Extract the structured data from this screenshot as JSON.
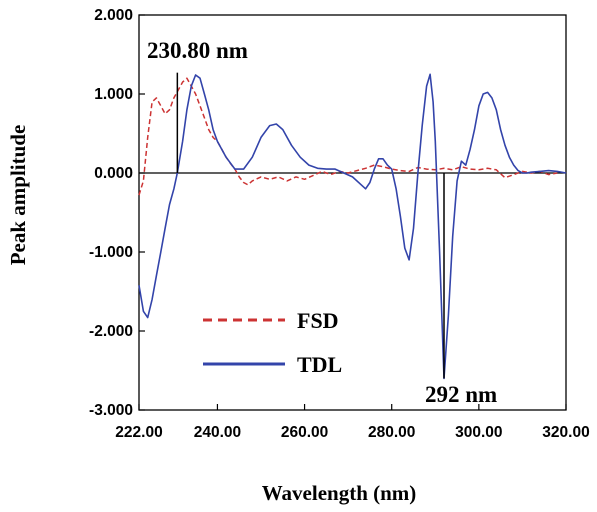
{
  "chart_data": {
    "type": "line",
    "xlabel": "Wavelength (nm)",
    "ylabel": "Peak amplitude",
    "xlim": [
      222,
      320
    ],
    "ylim": [
      -3,
      2
    ],
    "x_ticks": [
      222,
      240,
      260,
      280,
      300,
      320
    ],
    "x_tick_labels": [
      "222.00",
      "240.00",
      "260.00",
      "280.00",
      "300.00",
      "320.00"
    ],
    "y_ticks": [
      2,
      1,
      0,
      -1,
      -2,
      -3
    ],
    "y_tick_labels": [
      "2.000",
      "1.000",
      "0.000",
      "-1.000",
      "-2.000",
      "-3.000"
    ],
    "grid": false,
    "zero_line": true,
    "legend": {
      "placement": "lower-left",
      "entries": [
        "FSD",
        "TDL"
      ]
    },
    "colors": {
      "FSD": "#cc3333",
      "TDL": "#3344aa"
    },
    "annotations": [
      {
        "text": "230.80 nm",
        "x": 230.8,
        "y_from": 0.0,
        "y_to": 1.27
      },
      {
        "text": "292 nm",
        "x": 292,
        "y_from": 0.0,
        "y_to": -2.6
      }
    ],
    "series": [
      {
        "name": "FSD",
        "style": "dashed",
        "x": [
          222,
          223,
          224,
          225,
          226,
          227,
          228,
          229,
          230,
          231,
          232,
          233,
          234,
          235,
          236,
          237,
          238,
          239,
          240,
          241,
          242,
          243,
          244,
          245,
          246,
          247,
          248,
          250,
          252,
          254,
          256,
          258,
          260,
          262,
          264,
          266,
          268,
          270,
          272,
          274,
          276,
          278,
          280,
          282,
          284,
          286,
          288,
          290,
          292,
          294,
          296,
          298,
          300,
          302,
          304,
          306,
          308,
          310,
          312,
          314,
          316,
          318
        ],
        "y": [
          -0.28,
          -0.1,
          0.45,
          0.9,
          0.95,
          0.85,
          0.75,
          0.8,
          0.95,
          1.05,
          1.15,
          1.2,
          1.1,
          1.0,
          0.85,
          0.7,
          0.55,
          0.45,
          0.4,
          0.3,
          0.2,
          0.12,
          0.05,
          -0.05,
          -0.12,
          -0.15,
          -0.1,
          -0.05,
          -0.08,
          -0.05,
          -0.1,
          -0.05,
          -0.08,
          -0.03,
          0.02,
          -0.02,
          0.02,
          0.0,
          0.03,
          0.06,
          0.1,
          0.08,
          0.05,
          0.03,
          0.02,
          0.07,
          0.05,
          0.04,
          0.06,
          0.04,
          0.08,
          0.05,
          0.04,
          0.06,
          0.04,
          -0.06,
          -0.02,
          0.02,
          0.0,
          0.02,
          -0.02,
          0.0
        ]
      },
      {
        "name": "TDL",
        "style": "solid",
        "x": [
          222,
          223,
          224,
          225,
          226,
          227,
          228,
          229,
          230,
          230.8,
          232,
          233,
          234,
          235,
          236,
          237,
          238,
          239,
          240,
          242,
          244,
          246,
          248,
          250,
          252,
          253.5,
          255,
          257,
          259,
          261,
          263,
          265,
          267,
          269,
          271,
          273,
          274,
          275,
          276,
          277,
          278,
          279,
          280,
          281,
          282,
          283,
          284,
          285,
          286,
          287,
          288,
          288.8,
          289.5,
          290,
          291,
          292,
          293,
          294,
          295,
          296,
          297,
          298,
          299,
          300,
          301,
          302,
          303,
          304,
          305,
          306,
          307,
          308,
          309,
          310,
          311,
          312,
          314,
          316,
          318,
          320
        ],
        "y": [
          -1.42,
          -1.75,
          -1.83,
          -1.6,
          -1.3,
          -1.0,
          -0.7,
          -0.4,
          -0.2,
          0.0,
          0.4,
          0.8,
          1.1,
          1.24,
          1.2,
          1.0,
          0.8,
          0.55,
          0.4,
          0.2,
          0.05,
          0.05,
          0.2,
          0.45,
          0.6,
          0.62,
          0.55,
          0.35,
          0.2,
          0.1,
          0.06,
          0.05,
          0.05,
          0.0,
          -0.05,
          -0.15,
          -0.2,
          -0.12,
          0.05,
          0.18,
          0.18,
          0.1,
          0.05,
          -0.2,
          -0.55,
          -0.95,
          -1.1,
          -0.7,
          0.0,
          0.6,
          1.1,
          1.25,
          0.9,
          0.4,
          -1.0,
          -2.6,
          -1.8,
          -0.8,
          -0.1,
          0.15,
          0.1,
          0.3,
          0.55,
          0.85,
          1.0,
          1.02,
          0.95,
          0.8,
          0.55,
          0.35,
          0.2,
          0.1,
          0.03,
          0.0,
          0.0,
          0.01,
          0.02,
          0.03,
          0.02,
          0.0
        ]
      }
    ]
  }
}
